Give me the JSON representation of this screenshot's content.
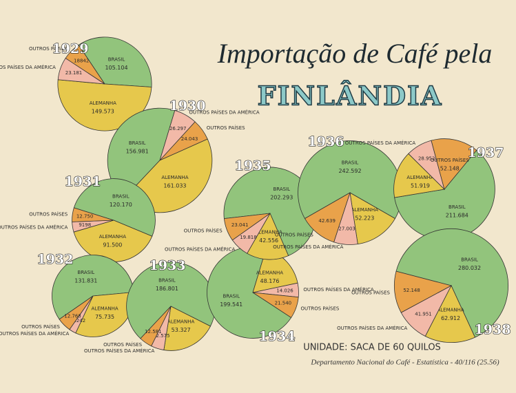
{
  "header": {
    "title": "Importação de Café pela",
    "subtitle": "FINLÂNDIA"
  },
  "footer": {
    "unit": "UNIDADE: SACA DE 60 QUILOS",
    "source": "Departamento Nacional do Café - Estatística - 40/116 (25.56)"
  },
  "chart_data": [
    {
      "type": "pie",
      "title": "1929",
      "categories": [
        "BRASIL",
        "ALEMANHA",
        "OUTROS PAÍSES DA AMÉRICA",
        "OUTROS PAÍSES"
      ],
      "values": [
        105104,
        149573,
        23181,
        18842
      ],
      "value_labels": [
        "105.104",
        "149.573",
        "23.181",
        "18842"
      ],
      "colors": [
        "#92c47c",
        "#e6c84c",
        "#f2b9a8",
        "#e9a24a"
      ]
    },
    {
      "type": "pie",
      "title": "1930",
      "categories": [
        "BRASIL",
        "OUTROS PAÍSES DA AMÉRICA",
        "OUTROS PAÍSES",
        "ALEMANHA"
      ],
      "values": [
        156981,
        26297,
        24043,
        161033
      ],
      "value_labels": [
        "156.981",
        "26.297",
        "24.043",
        "161.033"
      ],
      "colors": [
        "#92c47c",
        "#f2b9a8",
        "#e9a24a",
        "#e6c84c"
      ]
    },
    {
      "type": "pie",
      "title": "1931",
      "categories": [
        "BRASIL",
        "ALEMANHA",
        "OUTROS PAÍSES DA AMÉRICA",
        "OUTROS PAÍSES"
      ],
      "values": [
        120170,
        91500,
        9198,
        12750
      ],
      "value_labels": [
        "120.170",
        "91.500",
        "9198",
        "12.750"
      ],
      "colors": [
        "#92c47c",
        "#e6c84c",
        "#f2b9a8",
        "#e9a24a"
      ]
    },
    {
      "type": "pie",
      "title": "1932",
      "categories": [
        "BRASIL",
        "ALEMANHA",
        "OUTROS PAÍSES DA AMÉRICA",
        "OUTROS PAÍSES"
      ],
      "values": [
        131831,
        75735,
        6242,
        12768
      ],
      "value_labels": [
        "131.831",
        "75.735",
        "6.242",
        "12.768"
      ],
      "colors": [
        "#92c47c",
        "#e6c84c",
        "#f2b9a8",
        "#e9a24a"
      ]
    },
    {
      "type": "pie",
      "title": "1933",
      "categories": [
        "BRASIL",
        "ALEMANHA",
        "OUTROS PAÍSES DA AMÉRICA",
        "OUTROS PAÍSES"
      ],
      "values": [
        186801,
        53327,
        12575,
        12581
      ],
      "value_labels": [
        "186.801",
        "53.327",
        "12.575",
        "12.581"
      ],
      "colors": [
        "#92c47c",
        "#e6c84c",
        "#f2b9a8",
        "#e9a24a"
      ]
    },
    {
      "type": "pie",
      "title": "1934",
      "categories": [
        "BRASIL",
        "ALEMANHA",
        "OUTROS PAÍSES DA AMÉRICA",
        "OUTROS PAÍSES"
      ],
      "values": [
        199541,
        48176,
        14026,
        21540
      ],
      "value_labels": [
        "199.541",
        "48.176",
        "14.026",
        "21.540"
      ],
      "colors": [
        "#92c47c",
        "#e6c84c",
        "#f2b9a8",
        "#e9a24a"
      ]
    },
    {
      "type": "pie",
      "title": "1935",
      "categories": [
        "BRASIL",
        "ALEMANHA",
        "OUTROS PAÍSES DA AMÉRICA",
        "OUTROS PAÍSES"
      ],
      "values": [
        202293,
        42556,
        19818,
        23041
      ],
      "value_labels": [
        "202.293",
        "42.556",
        "19.818",
        "23.041"
      ],
      "colors": [
        "#92c47c",
        "#e6c84c",
        "#f2b9a8",
        "#e9a24a"
      ]
    },
    {
      "type": "pie",
      "title": "1936",
      "categories": [
        "BRASIL",
        "ALEMANHA",
        "OUTROS PAÍSES DA AMÉRICA",
        "OUTROS PAÍSES"
      ],
      "values": [
        242592,
        52223,
        27003,
        42639
      ],
      "value_labels": [
        "242.592",
        "52.223",
        "27.003",
        "42.639"
      ],
      "colors": [
        "#92c47c",
        "#e6c84c",
        "#f2b9a8",
        "#e9a24a"
      ]
    },
    {
      "type": "pie",
      "title": "1937",
      "categories": [
        "BRASIL",
        "ALEMANHA",
        "OUTROS PAÍSES DA AMÉRICA",
        "OUTROS PAÍSES"
      ],
      "values": [
        211684,
        51919,
        28952,
        52148
      ],
      "value_labels": [
        "211.684",
        "51.919",
        "28.952",
        "52.148"
      ],
      "colors": [
        "#92c47c",
        "#e6c84c",
        "#f2b9a8",
        "#e9a24a"
      ]
    },
    {
      "type": "pie",
      "title": "1938",
      "categories": [
        "BRASIL",
        "ALEMANHA",
        "OUTROS PAÍSES DA AMÉRICA",
        "OUTROS PAÍSES"
      ],
      "values": [
        280032,
        62912,
        41951,
        52148
      ],
      "value_labels": [
        "280.032",
        "62.912",
        "41.951",
        "52.148"
      ],
      "colors": [
        "#92c47c",
        "#e6c84c",
        "#f2b9a8",
        "#e9a24a"
      ]
    }
  ]
}
